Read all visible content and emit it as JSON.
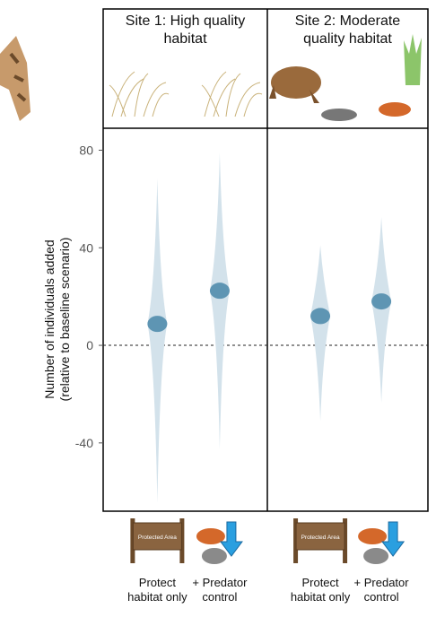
{
  "chart_data": {
    "type": "violin",
    "ylabel": [
      "Number of individuals added",
      "(relative to baseline scenario)"
    ],
    "ylim": [
      -68,
      89
    ],
    "yticks": [
      80,
      40,
      0,
      -40
    ],
    "hline": 0,
    "categories": [
      "Protect habitat only",
      "+ Predator control"
    ],
    "sign_text": "Protected Area",
    "color": "#d3e2eb",
    "mean_color": "#5e95b3",
    "panels": [
      {
        "title": "Site 1: High quality habitat",
        "means": [
          8.8,
          22.4
        ],
        "lows": [
          -64.7,
          -42.6
        ],
        "highs": [
          68.4,
          79
        ]
      },
      {
        "title": "Site 2: Moderate quality habitat",
        "means": [
          12,
          18
        ],
        "lows": [
          -31,
          -23.5
        ],
        "highs": [
          41,
          52.6
        ]
      }
    ]
  }
}
